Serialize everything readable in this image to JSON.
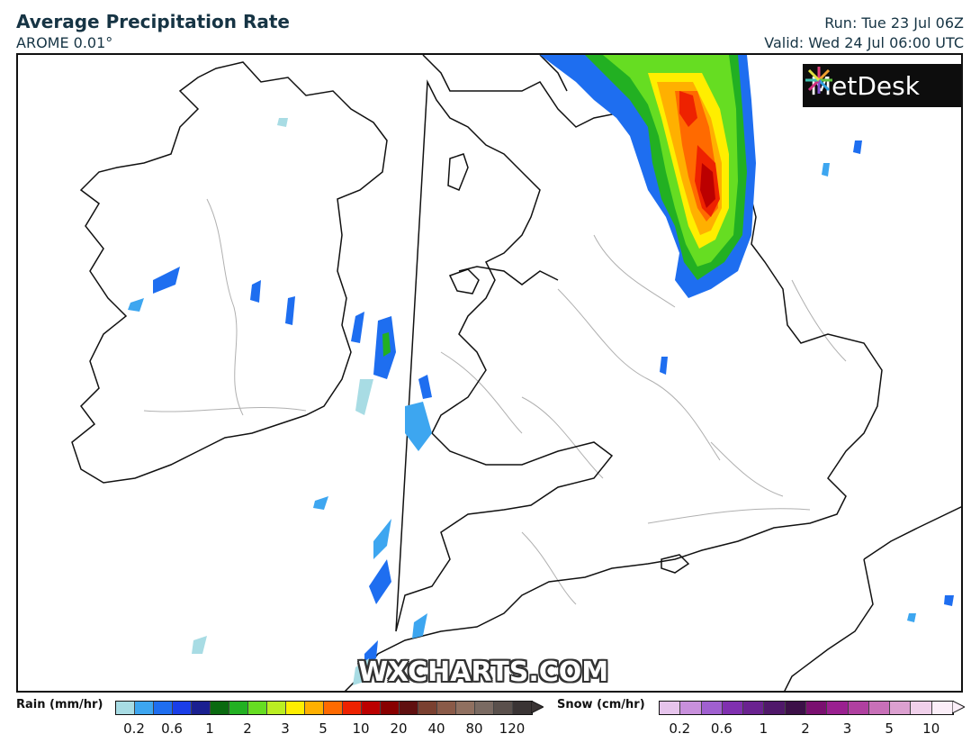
{
  "header": {
    "title": "Average Precipitation Rate",
    "model": "AROME 0.01°",
    "run": "Run: Tue 23 Jul 06Z",
    "valid": "Valid: Wed 24 Jul 06:00 UTC"
  },
  "logo": {
    "text": "MetDesk"
  },
  "watermark": "WXCHARTS.COM",
  "legend": {
    "rain": {
      "label": "Rain (mm/hr)",
      "colors": [
        "#a8dce4",
        "#3da6f0",
        "#1e6ef0",
        "#1a3ee8",
        "#1a2090",
        "#0a6a10",
        "#22b022",
        "#66dd22",
        "#bbee22",
        "#ffee00",
        "#ffb000",
        "#ff6a00",
        "#ee2200",
        "#bb0000",
        "#880000",
        "#601010",
        "#7a4030",
        "#8a5a48",
        "#907060",
        "#7a6a62",
        "#5a504c",
        "#3a3434"
      ],
      "ticks": [
        "0.2",
        "0.6",
        "1",
        "2",
        "3",
        "5",
        "10",
        "20",
        "40",
        "80",
        "120"
      ]
    },
    "snow": {
      "label": "Snow (cm/hr)",
      "colors": [
        "#e6c4ec",
        "#c890dc",
        "#a060d0",
        "#8030b0",
        "#6a2290",
        "#50186a",
        "#3c1048",
        "#7a1070",
        "#9a2090",
        "#b040a0",
        "#c870b8",
        "#dca0d0",
        "#f0d0ea",
        "#fbeef8"
      ],
      "ticks": [
        "0.2",
        "0.6",
        "1",
        "2",
        "3",
        "5",
        "10"
      ]
    }
  },
  "colors": {
    "title": "#163444",
    "coast": "#111111",
    "rivers": "#aaaaaa"
  }
}
